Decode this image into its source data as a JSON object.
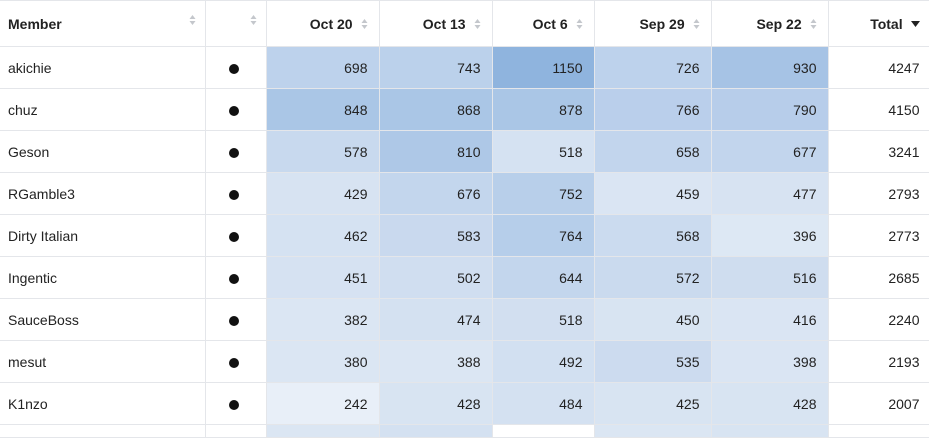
{
  "columns": {
    "member": "Member",
    "status": "",
    "weeks": [
      "Oct 20",
      "Oct 13",
      "Oct 6",
      "Sep 29",
      "Sep 22"
    ],
    "total": "Total"
  },
  "sort": {
    "column": "Total",
    "direction": "descending"
  },
  "heat_colors": {
    "empty": "#ffffff",
    "lightest": "#e7eef8",
    "light": "#d7e3f2",
    "medium_light": "#cddcef",
    "medium": "#c3d6ed",
    "medium_dark": "#b7cfea",
    "dark": "#a9c6e6",
    "darkest": "#8fb4de"
  },
  "rows": [
    {
      "member": "akichie",
      "values": [
        698,
        743,
        1150,
        726,
        930
      ],
      "total": 4247,
      "cell_colors": [
        "#bdd2ec",
        "#bbd1eb",
        "#8fb4de",
        "#bdd2ec",
        "#a6c3e5"
      ]
    },
    {
      "member": "chuz",
      "values": [
        848,
        868,
        878,
        766,
        790
      ],
      "total": 4150,
      "cell_colors": [
        "#aac6e6",
        "#aac6e6",
        "#aac6e6",
        "#bacfeb",
        "#b7cdea"
      ]
    },
    {
      "member": "Geson",
      "values": [
        578,
        810,
        518,
        658,
        677
      ],
      "total": 3241,
      "cell_colors": [
        "#c8d9ee",
        "#aec8e7",
        "#d5e2f2",
        "#c2d5ed",
        "#c2d5ed"
      ]
    },
    {
      "member": "RGamble3",
      "values": [
        429,
        676,
        752,
        459,
        477
      ],
      "total": 2793,
      "cell_colors": [
        "#d7e3f2",
        "#c3d6ed",
        "#b8cfea",
        "#dae5f3",
        "#d7e3f2"
      ]
    },
    {
      "member": "Dirty Italian",
      "values": [
        462,
        583,
        764,
        568,
        396
      ],
      "total": 2773,
      "cell_colors": [
        "#d5e2f2",
        "#c9d9ee",
        "#b6ceea",
        "#cbdbef",
        "#dde8f4"
      ]
    },
    {
      "member": "Ingentic",
      "values": [
        451,
        502,
        644,
        572,
        516
      ],
      "total": 2685,
      "cell_colors": [
        "#d6e2f2",
        "#d0def0",
        "#c3d6ed",
        "#cadaee",
        "#cfddef"
      ]
    },
    {
      "member": "SauceBoss",
      "values": [
        382,
        474,
        518,
        450,
        416
      ],
      "total": 2240,
      "cell_colors": [
        "#dbe6f3",
        "#d4e1f1",
        "#d2dff0",
        "#d8e4f2",
        "#dae5f3"
      ]
    },
    {
      "member": "mesut",
      "values": [
        380,
        388,
        492,
        535,
        398
      ],
      "total": 2193,
      "cell_colors": [
        "#dbe6f3",
        "#dbe6f3",
        "#d2e0f1",
        "#ccdbef",
        "#dae5f3"
      ]
    },
    {
      "member": "K1nzo",
      "values": [
        242,
        428,
        484,
        425,
        428
      ],
      "total": 2007,
      "cell_colors": [
        "#e8eff8",
        "#d8e4f2",
        "#d4e1f1",
        "#d8e4f2",
        "#d8e4f2"
      ]
    },
    {
      "member": "",
      "values": [
        null,
        null,
        null,
        null,
        null
      ],
      "total": null,
      "cell_colors": [
        "#dbe6f3",
        "#d4e1f1",
        "#ffffff",
        "#dbe6f3",
        "#d8e4f2"
      ]
    }
  ]
}
